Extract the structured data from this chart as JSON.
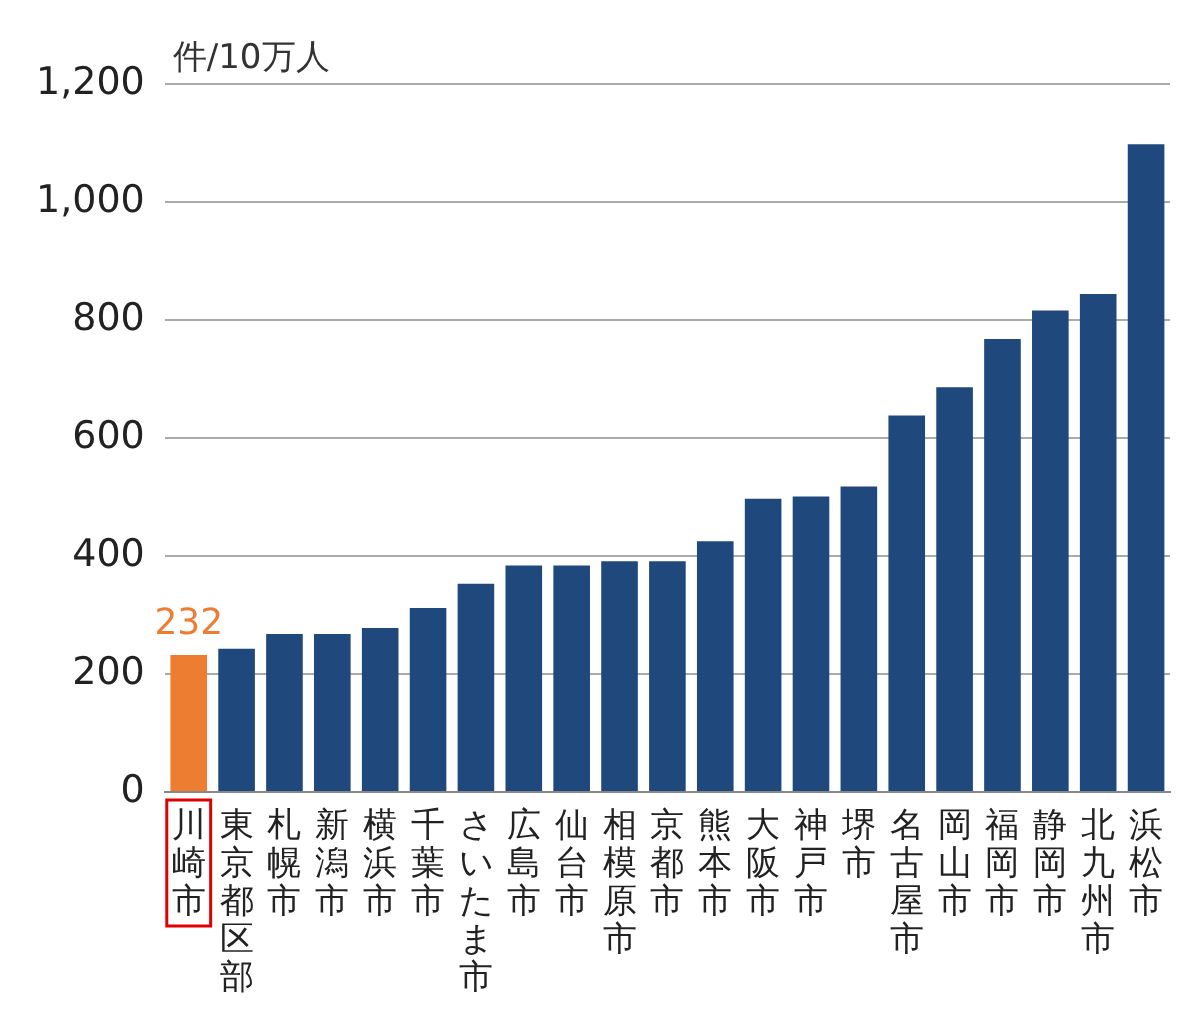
{
  "chart_data": {
    "type": "bar",
    "ylabel": "件/10万人",
    "categories": [
      "川崎市",
      "東京都区部",
      "札幌市",
      "新潟市",
      "横浜市",
      "千葉市",
      "さいたま市",
      "広島市",
      "仙台市",
      "相模原市",
      "京都市",
      "熊本市",
      "大阪市",
      "神戸市",
      "堺市",
      "名古屋市",
      "岡山市",
      "福岡市",
      "静岡市",
      "北九州市",
      "浜松市"
    ],
    "values": [
      232,
      243,
      268,
      268,
      278,
      312,
      353,
      384,
      384,
      391,
      391,
      425,
      497,
      501,
      518,
      638,
      686,
      768,
      816,
      844,
      1098
    ],
    "colors": [
      "#ed7d31",
      "#1f497d",
      "#1f497d",
      "#1f497d",
      "#1f497d",
      "#1f497d",
      "#1f497d",
      "#1f497d",
      "#1f497d",
      "#1f497d",
      "#1f497d",
      "#1f497d",
      "#1f497d",
      "#1f497d",
      "#1f497d",
      "#1f497d",
      "#1f497d",
      "#1f497d",
      "#1f497d",
      "#1f497d",
      "#1f497d"
    ],
    "value_labels": [
      "232",
      null,
      null,
      null,
      null,
      null,
      null,
      null,
      null,
      null,
      null,
      null,
      null,
      null,
      null,
      null,
      null,
      null,
      null,
      null,
      null
    ],
    "ylim": [
      0,
      1200
    ],
    "yticks": [
      0,
      200,
      400,
      600,
      800,
      {
        "value": 1000,
        "label": "1,000"
      },
      {
        "value": 1200,
        "label": "1,200"
      }
    ],
    "grid": "y",
    "legend": false
  }
}
